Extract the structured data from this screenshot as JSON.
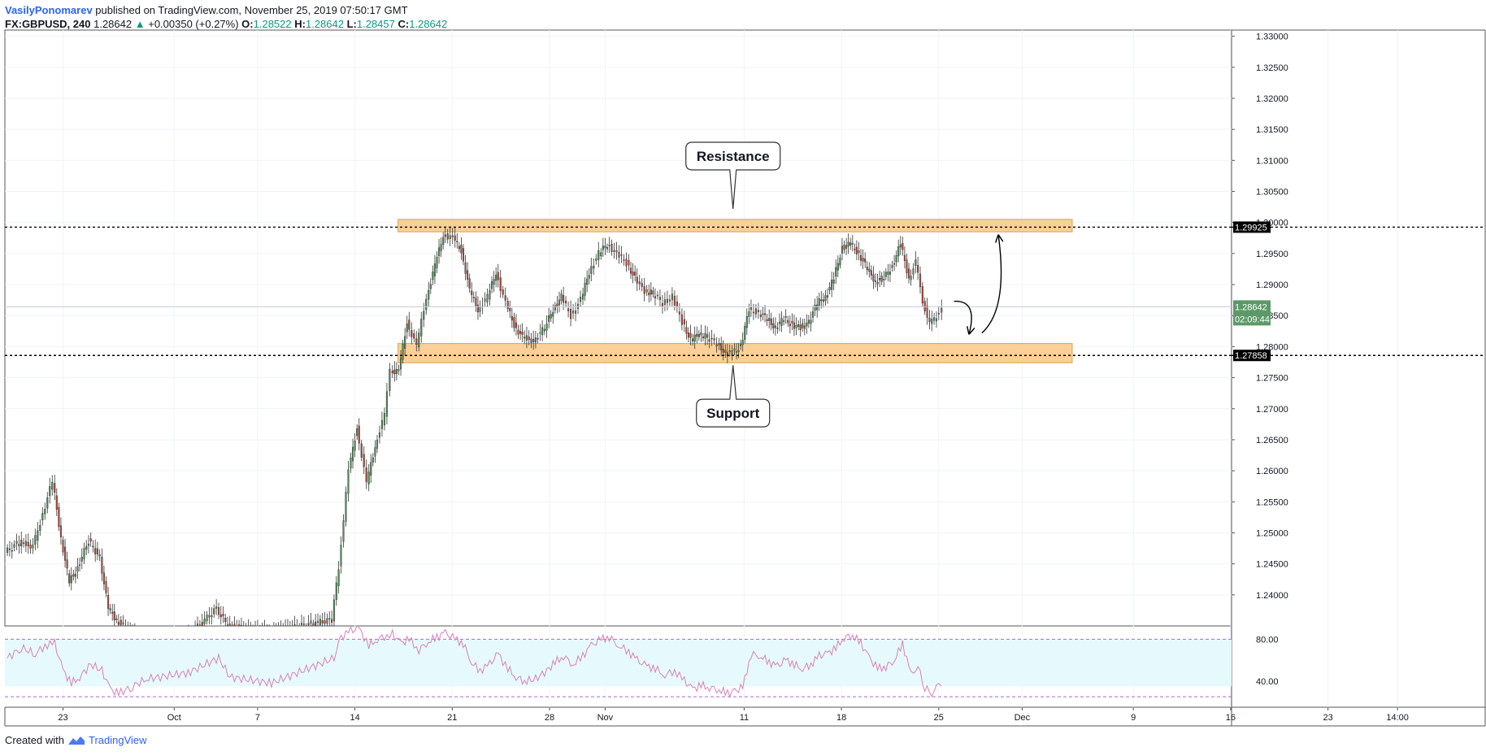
{
  "header": {
    "author": "VasilyPonomarev",
    "published": "published on TradingView.com, November 25, 2019 07:50:17 GMT",
    "symbol": "FX:GBPUSD, 240",
    "last": "1.28642",
    "change": "+0.00350 (+0.27%)",
    "o_label": "O:",
    "o_value": "1.28522",
    "h_label": "H:",
    "h_value": "1.28642",
    "l_label": "L:",
    "l_value": "1.28457",
    "c_label": "C:",
    "c_value": "1.28642"
  },
  "footer": {
    "created_with": "Created with",
    "brand": "TradingView"
  },
  "colors": {
    "up": "#4f8d55",
    "down": "#b2483a",
    "zone_fill": "#fbcc8c",
    "zone_stroke": "#e3933b",
    "rsi_fill": "#e6fafd",
    "rsi_line": "#dc7fb6",
    "price_badge": "#5b9a68",
    "level_badge": "#000000"
  },
  "chart_data": {
    "type": "candlestick",
    "symbol": "FX:GBPUSD",
    "interval": "240",
    "y_axis": {
      "min": 1.235,
      "max": 1.331,
      "ticks": [
        "1.24000",
        "1.24500",
        "1.25000",
        "1.25500",
        "1.26000",
        "1.26500",
        "1.27000",
        "1.27500",
        "1.28000",
        "1.28500",
        "1.29000",
        "1.29500",
        "1.30000",
        "1.30500",
        "1.31000",
        "1.31500",
        "1.32000",
        "1.32500",
        "1.33000"
      ]
    },
    "x_axis": {
      "ticks": [
        {
          "label": "23",
          "day": 0
        },
        {
          "label": "Oct",
          "day": 8
        },
        {
          "label": "7",
          "day": 14
        },
        {
          "label": "14",
          "day": 21
        },
        {
          "label": "21",
          "day": 28
        },
        {
          "label": "28",
          "day": 35
        },
        {
          "label": "Nov",
          "day": 39
        },
        {
          "label": "11",
          "day": 49
        },
        {
          "label": "18",
          "day": 56
        },
        {
          "label": "25",
          "day": 63
        },
        {
          "label": "Dec",
          "day": 69
        },
        {
          "label": "9",
          "day": 77
        },
        {
          "label": "16",
          "day": 84
        },
        {
          "label": "23",
          "day": 91
        },
        {
          "label": "14:00",
          "day": 96
        }
      ]
    },
    "horizontal_lines": [
      {
        "value": 1.29925,
        "label": "1.29925"
      },
      {
        "value": 1.27858,
        "label": "1.27858"
      }
    ],
    "zones": [
      {
        "name": "Resistance",
        "from": 1.2985,
        "to": 1.3005,
        "start_day": 24.1,
        "end_day": 72.6
      },
      {
        "name": "Support",
        "from": 1.2774,
        "to": 1.2805,
        "start_day": 24.1,
        "end_day": 72.6
      }
    ],
    "annotations": [
      {
        "text": "Resistance",
        "day": 48.2,
        "value": 1.3107
      },
      {
        "text": "Support",
        "day": 48.2,
        "value": 1.2693
      }
    ],
    "current_price": {
      "value": 1.28642,
      "label": "1.28642",
      "countdown": "02:09:44"
    },
    "series": [
      {
        "name": "price",
        "points": [
          {
            "d": -4.0,
            "c": 1.2468
          },
          {
            "d": -3.0,
            "c": 1.2485
          },
          {
            "d": -2.0,
            "c": 1.2478
          },
          {
            "d": -1.3,
            "c": 1.253
          },
          {
            "d": -0.6,
            "c": 1.2583
          },
          {
            "d": 0.0,
            "c": 1.2492
          },
          {
            "d": 0.6,
            "c": 1.242
          },
          {
            "d": 1.2,
            "c": 1.2445
          },
          {
            "d": 2.0,
            "c": 1.2487
          },
          {
            "d": 2.8,
            "c": 1.246
          },
          {
            "d": 3.4,
            "c": 1.2378
          },
          {
            "d": 4.0,
            "c": 1.236
          },
          {
            "d": 5.0,
            "c": 1.234
          },
          {
            "d": 6.0,
            "c": 1.232
          },
          {
            "d": 9.0,
            "c": 1.233
          },
          {
            "d": 11.2,
            "c": 1.2378
          },
          {
            "d": 12.0,
            "c": 1.235
          },
          {
            "d": 15.0,
            "c": 1.234
          },
          {
            "d": 19.5,
            "c": 1.236
          },
          {
            "d": 20.0,
            "c": 1.2445
          },
          {
            "d": 20.7,
            "c": 1.26
          },
          {
            "d": 21.3,
            "c": 1.267
          },
          {
            "d": 22.0,
            "c": 1.258
          },
          {
            "d": 22.6,
            "c": 1.264
          },
          {
            "d": 23.3,
            "c": 1.269
          },
          {
            "d": 23.7,
            "c": 1.276
          },
          {
            "d": 24.3,
            "c": 1.276
          },
          {
            "d": 24.9,
            "c": 1.284
          },
          {
            "d": 25.6,
            "c": 1.28
          },
          {
            "d": 26.3,
            "c": 1.288
          },
          {
            "d": 26.9,
            "c": 1.293
          },
          {
            "d": 27.5,
            "c": 1.298
          },
          {
            "d": 28.2,
            "c": 1.2975
          },
          {
            "d": 28.8,
            "c": 1.2955
          },
          {
            "d": 29.4,
            "c": 1.289
          },
          {
            "d": 30.0,
            "c": 1.286
          },
          {
            "d": 30.7,
            "c": 1.288
          },
          {
            "d": 31.3,
            "c": 1.292
          },
          {
            "d": 32.0,
            "c": 1.287
          },
          {
            "d": 32.6,
            "c": 1.2835
          },
          {
            "d": 33.2,
            "c": 1.2815
          },
          {
            "d": 34.0,
            "c": 1.281
          },
          {
            "d": 34.8,
            "c": 1.283
          },
          {
            "d": 35.4,
            "c": 1.286
          },
          {
            "d": 36.0,
            "c": 1.288
          },
          {
            "d": 36.7,
            "c": 1.285
          },
          {
            "d": 37.4,
            "c": 1.2875
          },
          {
            "d": 38.0,
            "c": 1.292
          },
          {
            "d": 38.7,
            "c": 1.295
          },
          {
            "d": 39.3,
            "c": 1.2965
          },
          {
            "d": 40.0,
            "c": 1.295
          },
          {
            "d": 40.7,
            "c": 1.2935
          },
          {
            "d": 41.3,
            "c": 1.291
          },
          {
            "d": 42.0,
            "c": 1.289
          },
          {
            "d": 42.6,
            "c": 1.2885
          },
          {
            "d": 43.3,
            "c": 1.287
          },
          {
            "d": 44.0,
            "c": 1.288
          },
          {
            "d": 44.7,
            "c": 1.284
          },
          {
            "d": 45.3,
            "c": 1.281
          },
          {
            "d": 45.9,
            "c": 1.282
          },
          {
            "d": 46.5,
            "c": 1.2815
          },
          {
            "d": 47.2,
            "c": 1.2805
          },
          {
            "d": 47.8,
            "c": 1.279
          },
          {
            "d": 48.3,
            "c": 1.279
          },
          {
            "d": 48.9,
            "c": 1.28
          },
          {
            "d": 49.5,
            "c": 1.286
          },
          {
            "d": 50.2,
            "c": 1.2855
          },
          {
            "d": 50.8,
            "c": 1.2845
          },
          {
            "d": 51.4,
            "c": 1.283
          },
          {
            "d": 52.0,
            "c": 1.2845
          },
          {
            "d": 52.6,
            "c": 1.2835
          },
          {
            "d": 53.2,
            "c": 1.283
          },
          {
            "d": 53.8,
            "c": 1.284
          },
          {
            "d": 54.4,
            "c": 1.287
          },
          {
            "d": 55.0,
            "c": 1.288
          },
          {
            "d": 55.6,
            "c": 1.291
          },
          {
            "d": 56.2,
            "c": 1.296
          },
          {
            "d": 56.8,
            "c": 1.2965
          },
          {
            "d": 57.4,
            "c": 1.295
          },
          {
            "d": 58.0,
            "c": 1.2925
          },
          {
            "d": 58.6,
            "c": 1.2905
          },
          {
            "d": 59.2,
            "c": 1.291
          },
          {
            "d": 59.8,
            "c": 1.293
          },
          {
            "d": 60.4,
            "c": 1.2965
          },
          {
            "d": 61.0,
            "c": 1.291
          },
          {
            "d": 61.5,
            "c": 1.2935
          },
          {
            "d": 62.0,
            "c": 1.2875
          },
          {
            "d": 62.5,
            "c": 1.2835
          },
          {
            "d": 63.0,
            "c": 1.285
          },
          {
            "d": 63.4,
            "c": 1.2864
          }
        ]
      }
    ],
    "rsi": {
      "levels": [
        80,
        40
      ],
      "level_labels": [
        "80.00",
        "40.00"
      ],
      "range": [
        15,
        92
      ],
      "values": [
        {
          "d": -4.0,
          "v": 62
        },
        {
          "d": -3.0,
          "v": 72
        },
        {
          "d": -2.0,
          "v": 66
        },
        {
          "d": -1.3,
          "v": 74
        },
        {
          "d": -0.6,
          "v": 76
        },
        {
          "d": 0.0,
          "v": 50
        },
        {
          "d": 0.6,
          "v": 38
        },
        {
          "d": 1.2,
          "v": 44
        },
        {
          "d": 2.0,
          "v": 56
        },
        {
          "d": 2.8,
          "v": 50
        },
        {
          "d": 3.4,
          "v": 32
        },
        {
          "d": 4.0,
          "v": 28
        },
        {
          "d": 5.0,
          "v": 35
        },
        {
          "d": 6.0,
          "v": 42
        },
        {
          "d": 9.0,
          "v": 48
        },
        {
          "d": 11.2,
          "v": 62
        },
        {
          "d": 12.0,
          "v": 44
        },
        {
          "d": 15.0,
          "v": 38
        },
        {
          "d": 19.5,
          "v": 62
        },
        {
          "d": 20.0,
          "v": 82
        },
        {
          "d": 20.7,
          "v": 88
        },
        {
          "d": 21.3,
          "v": 90
        },
        {
          "d": 22.0,
          "v": 74
        },
        {
          "d": 22.6,
          "v": 80
        },
        {
          "d": 23.3,
          "v": 84
        },
        {
          "d": 23.7,
          "v": 85
        },
        {
          "d": 24.3,
          "v": 76
        },
        {
          "d": 24.9,
          "v": 80
        },
        {
          "d": 25.6,
          "v": 70
        },
        {
          "d": 26.3,
          "v": 78
        },
        {
          "d": 26.9,
          "v": 82
        },
        {
          "d": 27.5,
          "v": 86
        },
        {
          "d": 28.2,
          "v": 80
        },
        {
          "d": 28.8,
          "v": 76
        },
        {
          "d": 29.4,
          "v": 58
        },
        {
          "d": 30.0,
          "v": 50
        },
        {
          "d": 30.7,
          "v": 56
        },
        {
          "d": 31.3,
          "v": 66
        },
        {
          "d": 32.0,
          "v": 52
        },
        {
          "d": 32.6,
          "v": 44
        },
        {
          "d": 33.2,
          "v": 40
        },
        {
          "d": 34.0,
          "v": 42
        },
        {
          "d": 34.8,
          "v": 50
        },
        {
          "d": 35.4,
          "v": 58
        },
        {
          "d": 36.0,
          "v": 64
        },
        {
          "d": 36.7,
          "v": 56
        },
        {
          "d": 37.4,
          "v": 64
        },
        {
          "d": 38.0,
          "v": 74
        },
        {
          "d": 38.7,
          "v": 80
        },
        {
          "d": 39.3,
          "v": 82
        },
        {
          "d": 40.0,
          "v": 74
        },
        {
          "d": 40.7,
          "v": 68
        },
        {
          "d": 41.3,
          "v": 60
        },
        {
          "d": 42.0,
          "v": 54
        },
        {
          "d": 42.6,
          "v": 52
        },
        {
          "d": 43.3,
          "v": 46
        },
        {
          "d": 44.0,
          "v": 50
        },
        {
          "d": 44.7,
          "v": 40
        },
        {
          "d": 45.3,
          "v": 32
        },
        {
          "d": 45.9,
          "v": 36
        },
        {
          "d": 46.5,
          "v": 34
        },
        {
          "d": 47.2,
          "v": 32
        },
        {
          "d": 47.8,
          "v": 28
        },
        {
          "d": 48.3,
          "v": 30
        },
        {
          "d": 48.9,
          "v": 34
        },
        {
          "d": 49.5,
          "v": 66
        },
        {
          "d": 50.2,
          "v": 64
        },
        {
          "d": 50.8,
          "v": 58
        },
        {
          "d": 51.4,
          "v": 54
        },
        {
          "d": 52.0,
          "v": 60
        },
        {
          "d": 52.6,
          "v": 56
        },
        {
          "d": 53.2,
          "v": 52
        },
        {
          "d": 53.8,
          "v": 56
        },
        {
          "d": 54.4,
          "v": 64
        },
        {
          "d": 55.0,
          "v": 66
        },
        {
          "d": 55.6,
          "v": 72
        },
        {
          "d": 56.2,
          "v": 82
        },
        {
          "d": 56.8,
          "v": 84
        },
        {
          "d": 57.4,
          "v": 76
        },
        {
          "d": 58.0,
          "v": 62
        },
        {
          "d": 58.6,
          "v": 52
        },
        {
          "d": 59.2,
          "v": 54
        },
        {
          "d": 59.8,
          "v": 60
        },
        {
          "d": 60.4,
          "v": 76
        },
        {
          "d": 61.0,
          "v": 46
        },
        {
          "d": 61.5,
          "v": 54
        },
        {
          "d": 62.0,
          "v": 34
        },
        {
          "d": 62.5,
          "v": 28
        },
        {
          "d": 63.0,
          "v": 36
        },
        {
          "d": 63.4,
          "v": 42
        }
      ]
    }
  }
}
